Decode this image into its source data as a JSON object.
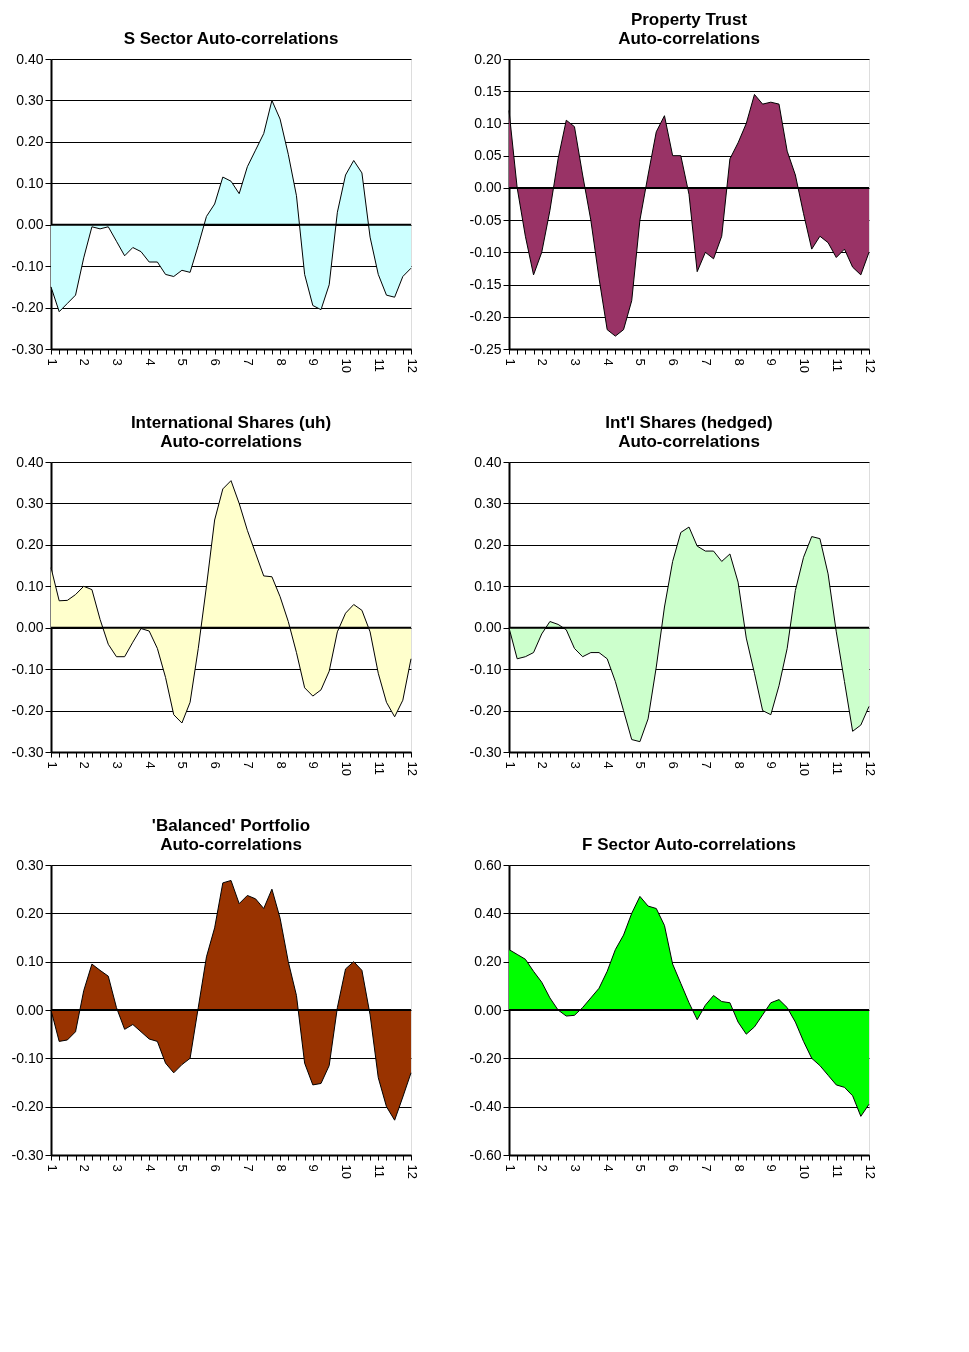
{
  "chart_data": [
    {
      "type": "area",
      "title": "S Sector Auto-correlations",
      "categories": [
        "1",
        null,
        null,
        null,
        "2",
        null,
        null,
        null,
        "3",
        null,
        null,
        null,
        "4",
        null,
        null,
        null,
        "5",
        null,
        null,
        null,
        "6",
        null,
        null,
        null,
        "7",
        null,
        null,
        null,
        "8",
        null,
        null,
        null,
        "9",
        null,
        null,
        null,
        "10",
        null,
        null,
        null,
        "11",
        null,
        null,
        null,
        "12"
      ],
      "series": [
        {
          "color": "#ccffff",
          "values": [
            -0.15,
            -0.21,
            -0.19,
            -0.17,
            -0.08,
            -0.005,
            -0.01,
            -0.005,
            -0.04,
            -0.075,
            -0.055,
            -0.065,
            -0.09,
            -0.09,
            -0.12,
            -0.125,
            -0.11,
            -0.115,
            -0.05,
            0.02,
            0.05,
            0.115,
            0.105,
            0.075,
            0.14,
            0.18,
            0.22,
            0.3,
            0.255,
            0.17,
            0.07,
            -0.12,
            -0.195,
            -0.205,
            -0.145,
            0.03,
            0.12,
            0.155,
            0.125,
            -0.03,
            -0.12,
            -0.17,
            -0.175,
            -0.125,
            -0.105
          ]
        }
      ],
      "ylim": [
        -0.3,
        0.4
      ],
      "yticks": [
        {
          "value": -0.3,
          "label": "-0.30"
        },
        {
          "value": -0.2,
          "label": "-0.20"
        },
        {
          "value": -0.1,
          "label": "-0.10"
        },
        {
          "value": 0,
          "label": "0.00"
        },
        {
          "value": 0.1,
          "label": "0.10"
        },
        {
          "value": 0.2,
          "label": "0.20"
        },
        {
          "value": 0.3,
          "label": "0.30"
        },
        {
          "value": 0.4,
          "label": "0.40"
        }
      ],
      "grid": "y"
    },
    {
      "type": "area",
      "title": "Property Trust\nAuto-correlations",
      "categories": [
        "1",
        null,
        null,
        null,
        "2",
        null,
        null,
        null,
        "3",
        null,
        null,
        null,
        "4",
        null,
        null,
        null,
        "5",
        null,
        null,
        null,
        "6",
        null,
        null,
        null,
        "7",
        null,
        null,
        null,
        "8",
        null,
        null,
        null,
        "9",
        null,
        null,
        null,
        "10",
        null,
        null,
        null,
        "11",
        null,
        null,
        null,
        "12"
      ],
      "series": [
        {
          "color": "#993366",
          "values": [
            0.12,
            0.0,
            -0.075,
            -0.135,
            -0.1,
            -0.035,
            0.045,
            0.105,
            0.095,
            0.02,
            -0.05,
            -0.14,
            -0.22,
            -0.23,
            -0.22,
            -0.175,
            -0.05,
            0.02,
            0.087,
            0.112,
            0.05,
            0.05,
            -0.01,
            -0.13,
            -0.1,
            -0.11,
            -0.075,
            0.045,
            0.07,
            0.1,
            0.145,
            0.13,
            0.133,
            0.13,
            0.057,
            0.02,
            -0.04,
            -0.095,
            -0.075,
            -0.085,
            -0.108,
            -0.095,
            -0.123,
            -0.135,
            -0.1
          ]
        }
      ],
      "ylim": [
        -0.25,
        0.2
      ],
      "yticks": [
        {
          "value": -0.25,
          "label": "-0.25"
        },
        {
          "value": -0.2,
          "label": "-0.20"
        },
        {
          "value": -0.15,
          "label": "-0.15"
        },
        {
          "value": -0.1,
          "label": "-0.10"
        },
        {
          "value": -0.05,
          "label": "-0.05"
        },
        {
          "value": 0,
          "label": "0.00"
        },
        {
          "value": 0.05,
          "label": "0.05"
        },
        {
          "value": 0.1,
          "label": "0.10"
        },
        {
          "value": 0.15,
          "label": "0.15"
        },
        {
          "value": 0.2,
          "label": "0.20"
        }
      ],
      "grid": "y"
    },
    {
      "type": "area",
      "title": "International Shares (uh)\nAuto-correlations",
      "categories": [
        "1",
        null,
        null,
        null,
        "2",
        null,
        null,
        null,
        "3",
        null,
        null,
        null,
        "4",
        null,
        null,
        null,
        "5",
        null,
        null,
        null,
        "6",
        null,
        null,
        null,
        "7",
        null,
        null,
        null,
        "8",
        null,
        null,
        null,
        "9",
        null,
        null,
        null,
        "10",
        null,
        null,
        null,
        "11",
        null,
        null,
        null,
        "12"
      ],
      "series": [
        {
          "color": "#ffffcc",
          "values": [
            0.145,
            0.065,
            0.066,
            0.08,
            0.1,
            0.092,
            0.02,
            -0.04,
            -0.07,
            -0.07,
            -0.035,
            -0.002,
            -0.008,
            -0.05,
            -0.12,
            -0.21,
            -0.23,
            -0.18,
            -0.05,
            0.1,
            0.26,
            0.335,
            0.355,
            0.3,
            0.235,
            0.18,
            0.125,
            0.123,
            0.075,
            0.015,
            -0.06,
            -0.145,
            -0.165,
            -0.15,
            -0.105,
            -0.01,
            0.035,
            0.056,
            0.042,
            -0.01,
            -0.11,
            -0.18,
            -0.215,
            -0.175,
            -0.075
          ]
        }
      ],
      "ylim": [
        -0.3,
        0.4
      ],
      "yticks": [
        {
          "value": -0.3,
          "label": "-0.30"
        },
        {
          "value": -0.2,
          "label": "-0.20"
        },
        {
          "value": -0.1,
          "label": "-0.10"
        },
        {
          "value": 0,
          "label": "0.00"
        },
        {
          "value": 0.1,
          "label": "0.10"
        },
        {
          "value": 0.2,
          "label": "0.20"
        },
        {
          "value": 0.3,
          "label": "0.30"
        },
        {
          "value": 0.4,
          "label": "0.40"
        }
      ],
      "grid": "y"
    },
    {
      "type": "area",
      "title": "Int'l Shares (hedged)\nAuto-correlations",
      "categories": [
        "1",
        null,
        null,
        null,
        "2",
        null,
        null,
        null,
        "3",
        null,
        null,
        null,
        "4",
        null,
        null,
        null,
        "5",
        null,
        null,
        null,
        "6",
        null,
        null,
        null,
        "7",
        null,
        null,
        null,
        "8",
        null,
        null,
        null,
        "9",
        null,
        null,
        null,
        "10",
        null,
        null,
        null,
        "11",
        null,
        null,
        null,
        "12"
      ],
      "series": [
        {
          "color": "#ccffcc",
          "values": [
            0.0,
            -0.075,
            -0.07,
            -0.06,
            -0.015,
            0.015,
            0.008,
            -0.005,
            -0.05,
            -0.07,
            -0.06,
            -0.06,
            -0.075,
            -0.13,
            -0.2,
            -0.27,
            -0.275,
            -0.22,
            -0.095,
            0.05,
            0.16,
            0.23,
            0.243,
            0.197,
            0.185,
            0.185,
            0.16,
            0.178,
            0.11,
            -0.025,
            -0.11,
            -0.2,
            -0.21,
            -0.14,
            -0.05,
            0.09,
            0.17,
            0.22,
            0.215,
            0.13,
            -0.01,
            -0.13,
            -0.25,
            -0.235,
            -0.19
          ]
        }
      ],
      "ylim": [
        -0.3,
        0.4
      ],
      "yticks": [
        {
          "value": -0.3,
          "label": "-0.30"
        },
        {
          "value": -0.2,
          "label": "-0.20"
        },
        {
          "value": -0.1,
          "label": "-0.10"
        },
        {
          "value": 0,
          "label": "0.00"
        },
        {
          "value": 0.1,
          "label": "0.10"
        },
        {
          "value": 0.2,
          "label": "0.20"
        },
        {
          "value": 0.3,
          "label": "0.30"
        },
        {
          "value": 0.4,
          "label": "0.40"
        }
      ],
      "grid": "y"
    },
    {
      "type": "area",
      "title": "'Balanced' Portfolio\nAuto-correlations",
      "categories": [
        "1",
        null,
        null,
        null,
        "2",
        null,
        null,
        null,
        "3",
        null,
        null,
        null,
        "4",
        null,
        null,
        null,
        "5",
        null,
        null,
        null,
        "6",
        null,
        null,
        null,
        "7",
        null,
        null,
        null,
        "8",
        null,
        null,
        null,
        "9",
        null,
        null,
        null,
        "10",
        null,
        null,
        null,
        "11",
        null,
        null,
        null,
        "12"
      ],
      "series": [
        {
          "color": "#993300",
          "values": [
            0.0,
            -0.065,
            -0.062,
            -0.045,
            0.04,
            0.095,
            0.082,
            0.07,
            0.005,
            -0.04,
            -0.03,
            -0.045,
            -0.06,
            -0.065,
            -0.11,
            -0.13,
            -0.113,
            -0.1,
            0.005,
            0.11,
            0.17,
            0.263,
            0.268,
            0.22,
            0.237,
            0.23,
            0.21,
            0.25,
            0.19,
            0.1,
            0.03,
            -0.11,
            -0.155,
            -0.152,
            -0.115,
            0.005,
            0.085,
            0.1,
            0.082,
            -0.01,
            -0.14,
            -0.2,
            -0.228,
            -0.18,
            -0.13
          ]
        }
      ],
      "ylim": [
        -0.3,
        0.3
      ],
      "yticks": [
        {
          "value": -0.3,
          "label": "-0.30"
        },
        {
          "value": -0.2,
          "label": "-0.20"
        },
        {
          "value": -0.1,
          "label": "-0.10"
        },
        {
          "value": 0,
          "label": "0.00"
        },
        {
          "value": 0.1,
          "label": "0.10"
        },
        {
          "value": 0.2,
          "label": "0.20"
        },
        {
          "value": 0.3,
          "label": "0.30"
        }
      ],
      "grid": "y"
    },
    {
      "type": "area",
      "title": "F Sector Auto-correlations",
      "categories": [
        "1",
        null,
        null,
        null,
        "2",
        null,
        null,
        null,
        "3",
        null,
        null,
        null,
        "4",
        null,
        null,
        null,
        "5",
        null,
        null,
        null,
        "6",
        null,
        null,
        null,
        "7",
        null,
        null,
        null,
        "8",
        null,
        null,
        null,
        "9",
        null,
        null,
        null,
        "10",
        null,
        null,
        null,
        "11",
        null,
        null,
        null,
        "12"
      ],
      "series": [
        {
          "color": "#00ff00",
          "values": [
            0.25,
            0.23,
            0.21,
            0.16,
            0.115,
            0.05,
            0.0,
            -0.025,
            -0.022,
            0.01,
            0.05,
            0.09,
            0.16,
            0.25,
            0.31,
            0.4,
            0.47,
            0.43,
            0.42,
            0.35,
            0.19,
            0.11,
            0.03,
            -0.04,
            0.02,
            0.06,
            0.035,
            0.03,
            -0.05,
            -0.1,
            -0.07,
            -0.02,
            0.03,
            0.043,
            0.01,
            -0.05,
            -0.13,
            -0.2,
            -0.23,
            -0.27,
            -0.31,
            -0.32,
            -0.355,
            -0.44,
            -0.39
          ]
        }
      ],
      "ylim": [
        -0.6,
        0.6
      ],
      "yticks": [
        {
          "value": -0.6,
          "label": "-0.60"
        },
        {
          "value": -0.4,
          "label": "-0.40"
        },
        {
          "value": -0.2,
          "label": "-0.20"
        },
        {
          "value": 0,
          "label": "0.00"
        },
        {
          "value": 0.2,
          "label": "0.20"
        },
        {
          "value": 0.4,
          "label": "0.40"
        },
        {
          "value": 0.6,
          "label": "0.60"
        }
      ],
      "grid": "y"
    }
  ]
}
